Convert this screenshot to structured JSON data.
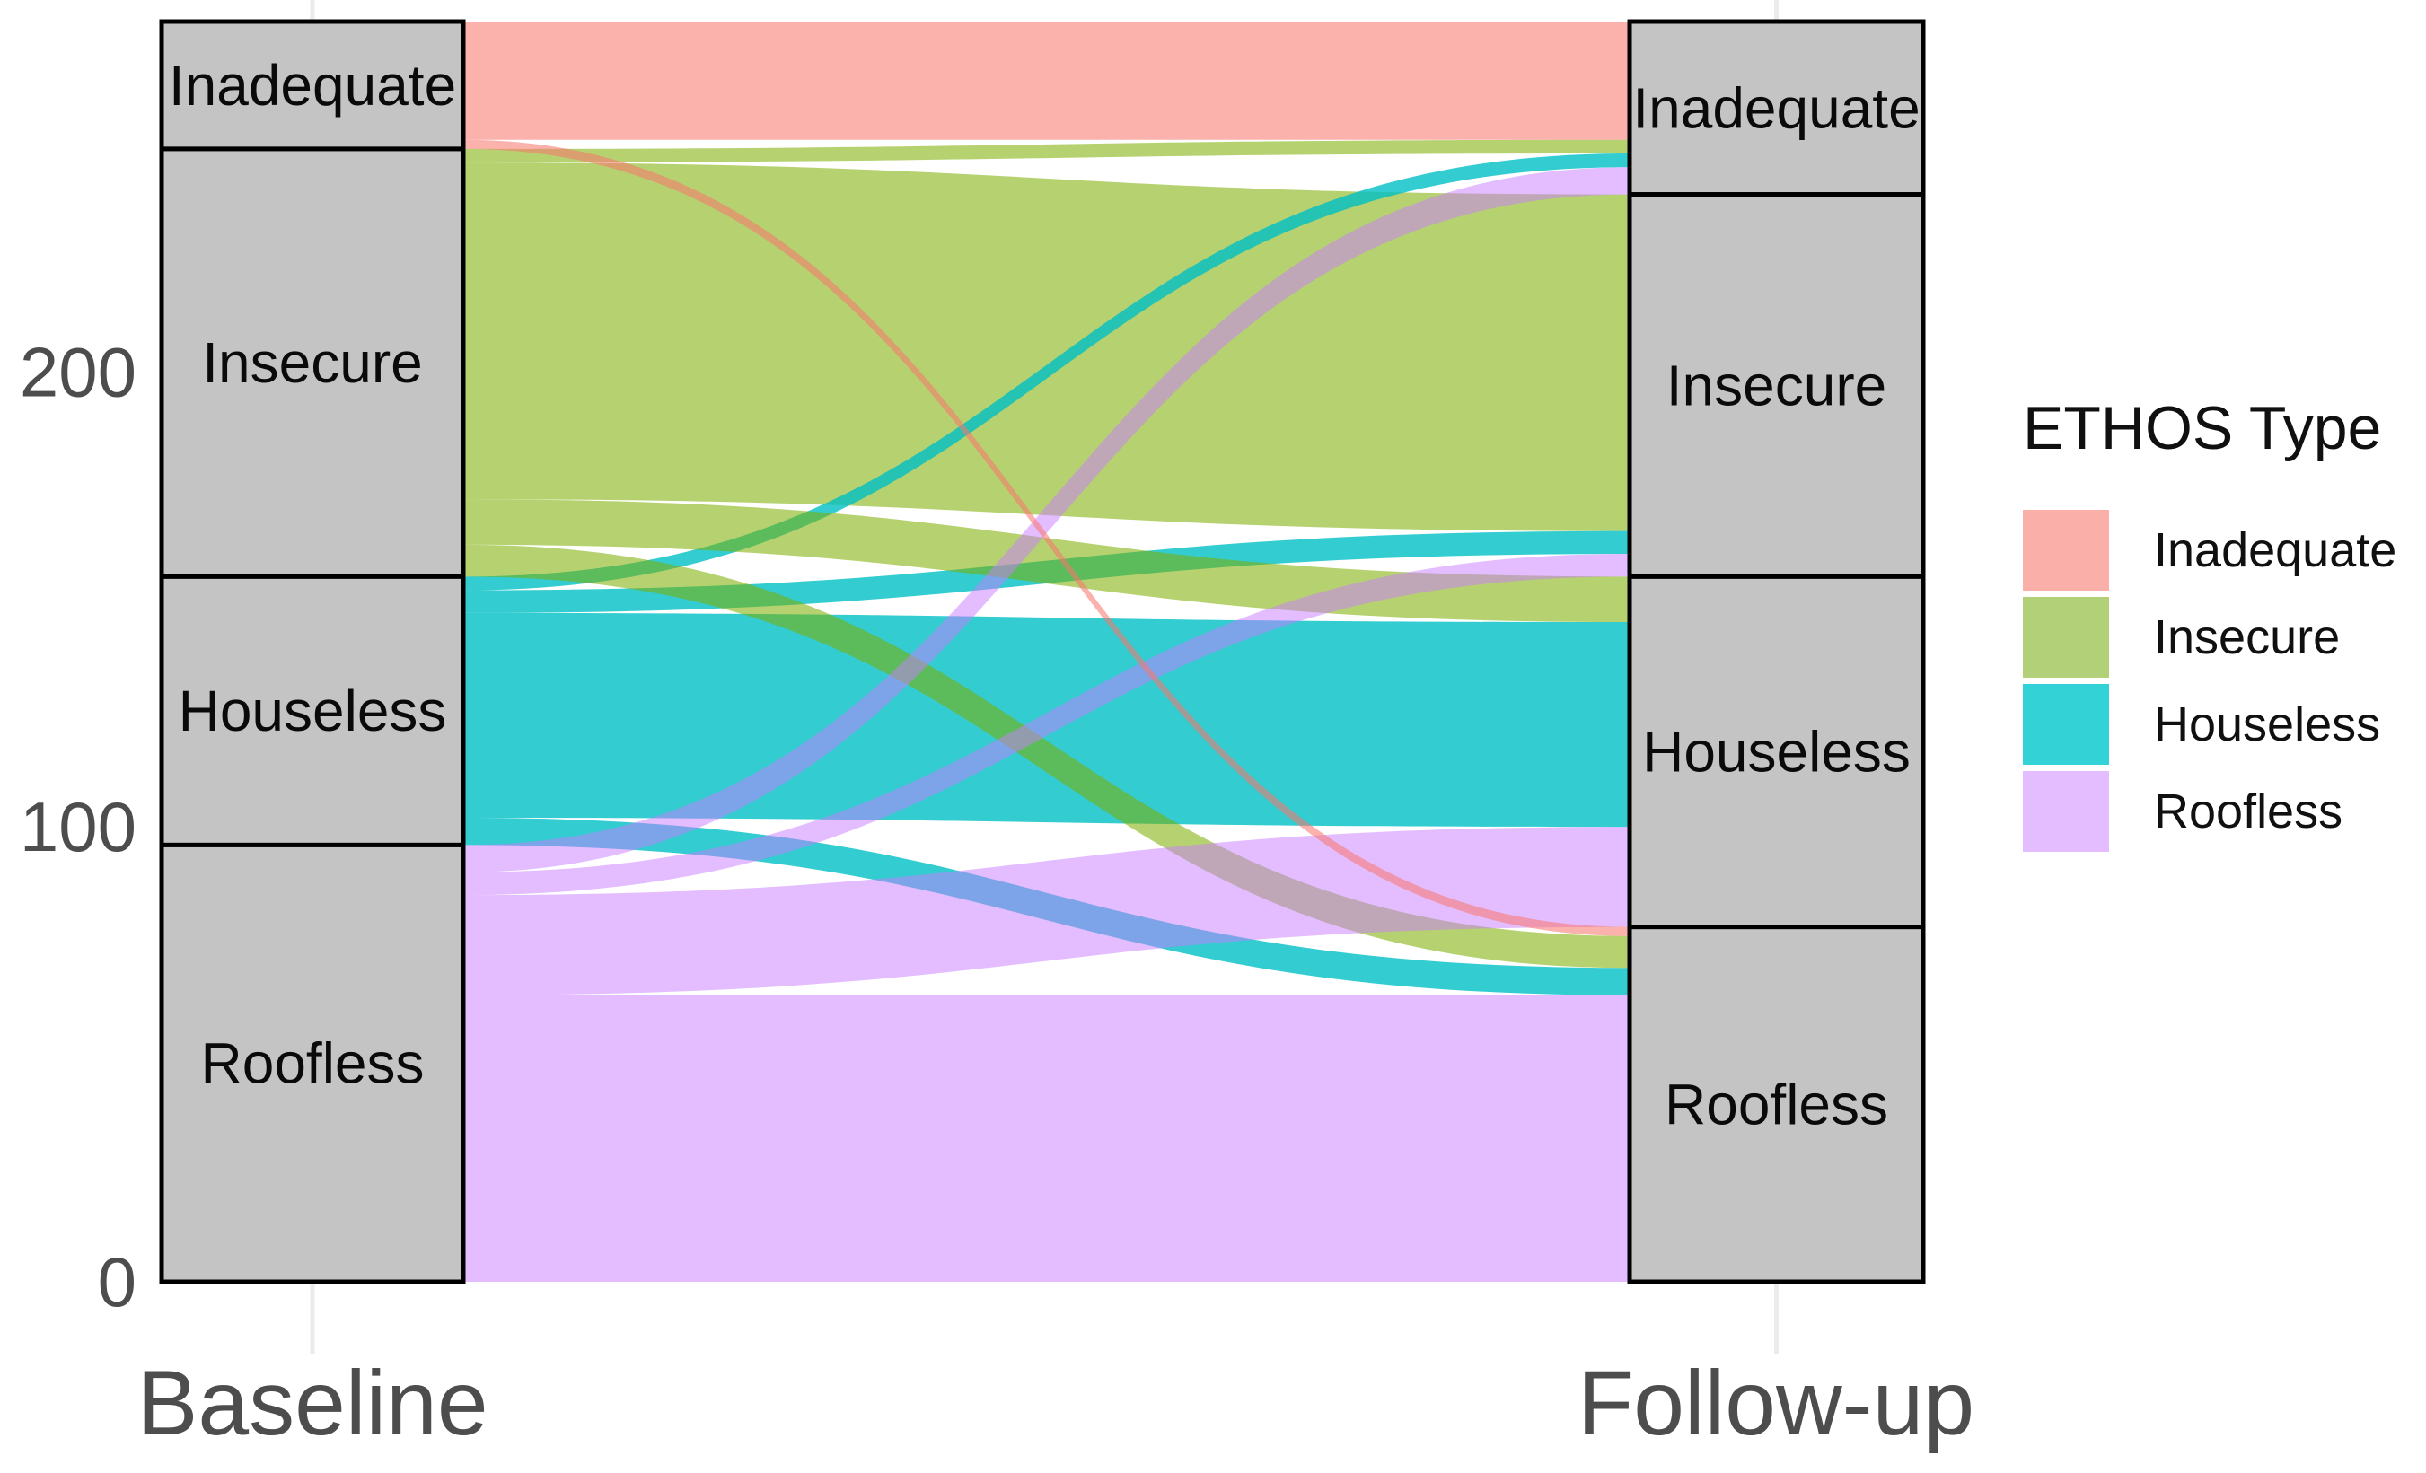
{
  "chart_data": {
    "type": "alluvial",
    "title": "",
    "categories": [
      "Inadequate",
      "Insecure",
      "Houseless",
      "Roofless"
    ],
    "axis": {
      "x_labels": [
        "Baseline",
        "Follow-up"
      ],
      "y_ticks": [
        0,
        100,
        200
      ],
      "y_range": [
        0,
        277
      ],
      "grid": "minimal-vertical-guides"
    },
    "baseline_totals": {
      "Inadequate": 28,
      "Insecure": 94,
      "Houseless": 59,
      "Roofless": 96
    },
    "followup_totals": {
      "Inadequate": 38,
      "Insecure": 84,
      "Houseless": 77,
      "Roofless": 78
    },
    "flows": [
      {
        "from": "Insecure",
        "to": "Inadequate",
        "n": 3
      },
      {
        "from": "Insecure",
        "to": "Insecure",
        "n": 74
      },
      {
        "from": "Houseless",
        "to": "Inadequate",
        "n": 3
      },
      {
        "from": "Houseless",
        "to": "Insecure",
        "n": 5
      },
      {
        "from": "Houseless",
        "to": "Houseless",
        "n": 45
      },
      {
        "from": "Houseless",
        "to": "Roofless",
        "n": 6
      },
      {
        "from": "Insecure",
        "to": "Houseless",
        "n": 10
      },
      {
        "from": "Insecure",
        "to": "Roofless",
        "n": 7
      },
      {
        "from": "Roofless",
        "to": "Inadequate",
        "n": 6
      },
      {
        "from": "Roofless",
        "to": "Insecure",
        "n": 5
      },
      {
        "from": "Roofless",
        "to": "Houseless",
        "n": 22
      },
      {
        "from": "Roofless",
        "to": "Roofless",
        "n": 63
      },
      {
        "from": "Inadequate",
        "to": "Inadequate",
        "n": 26
      },
      {
        "from": "Inadequate",
        "to": "Roofless",
        "n": 2
      }
    ],
    "colors": {
      "Inadequate": "#F8766D",
      "Insecure": "#7CAE00",
      "Houseless": "#00BFC4",
      "Roofless": "#C77CFF"
    },
    "fill_opacity": {
      "Inadequate": 0.56,
      "Insecure": 0.56,
      "Houseless": 0.8,
      "Roofless": 0.5
    },
    "legend_fill": {
      "Inadequate": "#FAB0A8",
      "Insecure": "#B2D077",
      "Houseless": "#33D2D6",
      "Roofless": "#E3BDFF"
    },
    "node_fill": "#C4C4C4",
    "node_stroke": "#000000",
    "gridline_color": "#EBEBEB",
    "tick_color": "#4d4d4d",
    "legend_position": "right"
  },
  "legend": {
    "title": "ETHOS Type",
    "items": [
      {
        "key": "Inadequate",
        "label": "Inadequate"
      },
      {
        "key": "Insecure",
        "label": "Insecure"
      },
      {
        "key": "Houseless",
        "label": "Houseless"
      },
      {
        "key": "Roofless",
        "label": "Roofless"
      }
    ]
  },
  "x_axis": {
    "left_label": "Baseline",
    "right_label": "Follow-up"
  }
}
